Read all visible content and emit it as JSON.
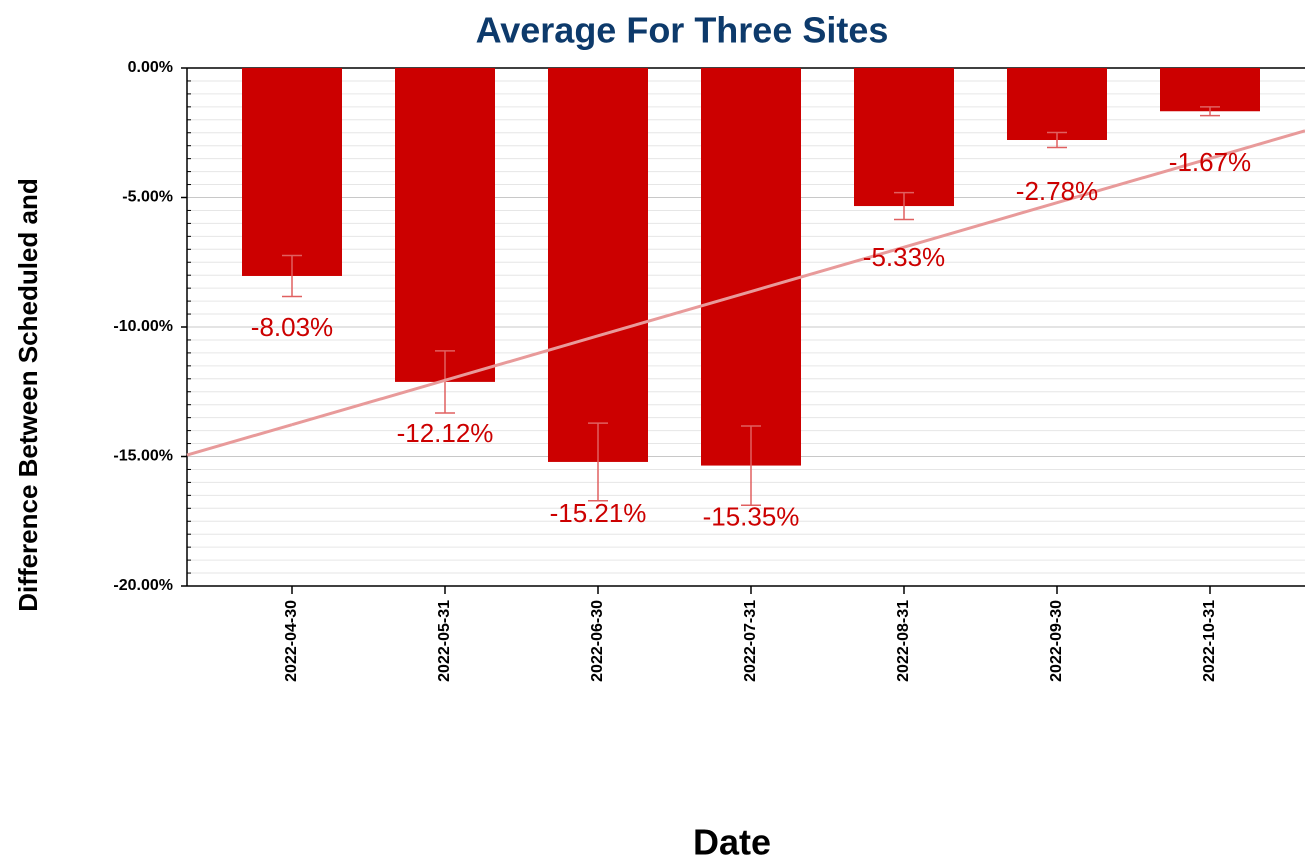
{
  "chart_data": {
    "type": "bar",
    "title": "Average For Three Sites",
    "x_label": "Date",
    "y_label": "Difference Between Scheduled and",
    "categories": [
      "2022-04-30",
      "2022-05-31",
      "2022-06-30",
      "2022-07-31",
      "2022-08-31",
      "2022-09-30",
      "2022-10-31"
    ],
    "values": [
      -8.03,
      -12.12,
      -15.21,
      -15.35,
      -5.33,
      -2.78,
      -1.67
    ],
    "value_labels": [
      "-8.03%",
      "-12.12%",
      "-15.21%",
      "-15.35%",
      "-5.33%",
      "-2.78%",
      "-1.67%"
    ],
    "errors": [
      0.79,
      1.2,
      1.5,
      1.53,
      0.52,
      0.29,
      0.17
    ],
    "color": "#cc0000",
    "error_color": "#e06060",
    "trend": {
      "values": [
        -13.77,
        -12.06,
        -10.34,
        -8.63,
        -6.92,
        -5.2,
        -3.49
      ],
      "color": "#e89a9a"
    },
    "ylim": [
      -20,
      0
    ],
    "yticks": [
      {
        "value": 0,
        "label": "0.00%"
      },
      {
        "value": -5,
        "label": "-5.00%"
      },
      {
        "value": -10,
        "label": "-10.00%"
      },
      {
        "value": -15,
        "label": "-15.00%"
      },
      {
        "value": -20,
        "label": "-20.00%"
      }
    ],
    "grid": true
  }
}
